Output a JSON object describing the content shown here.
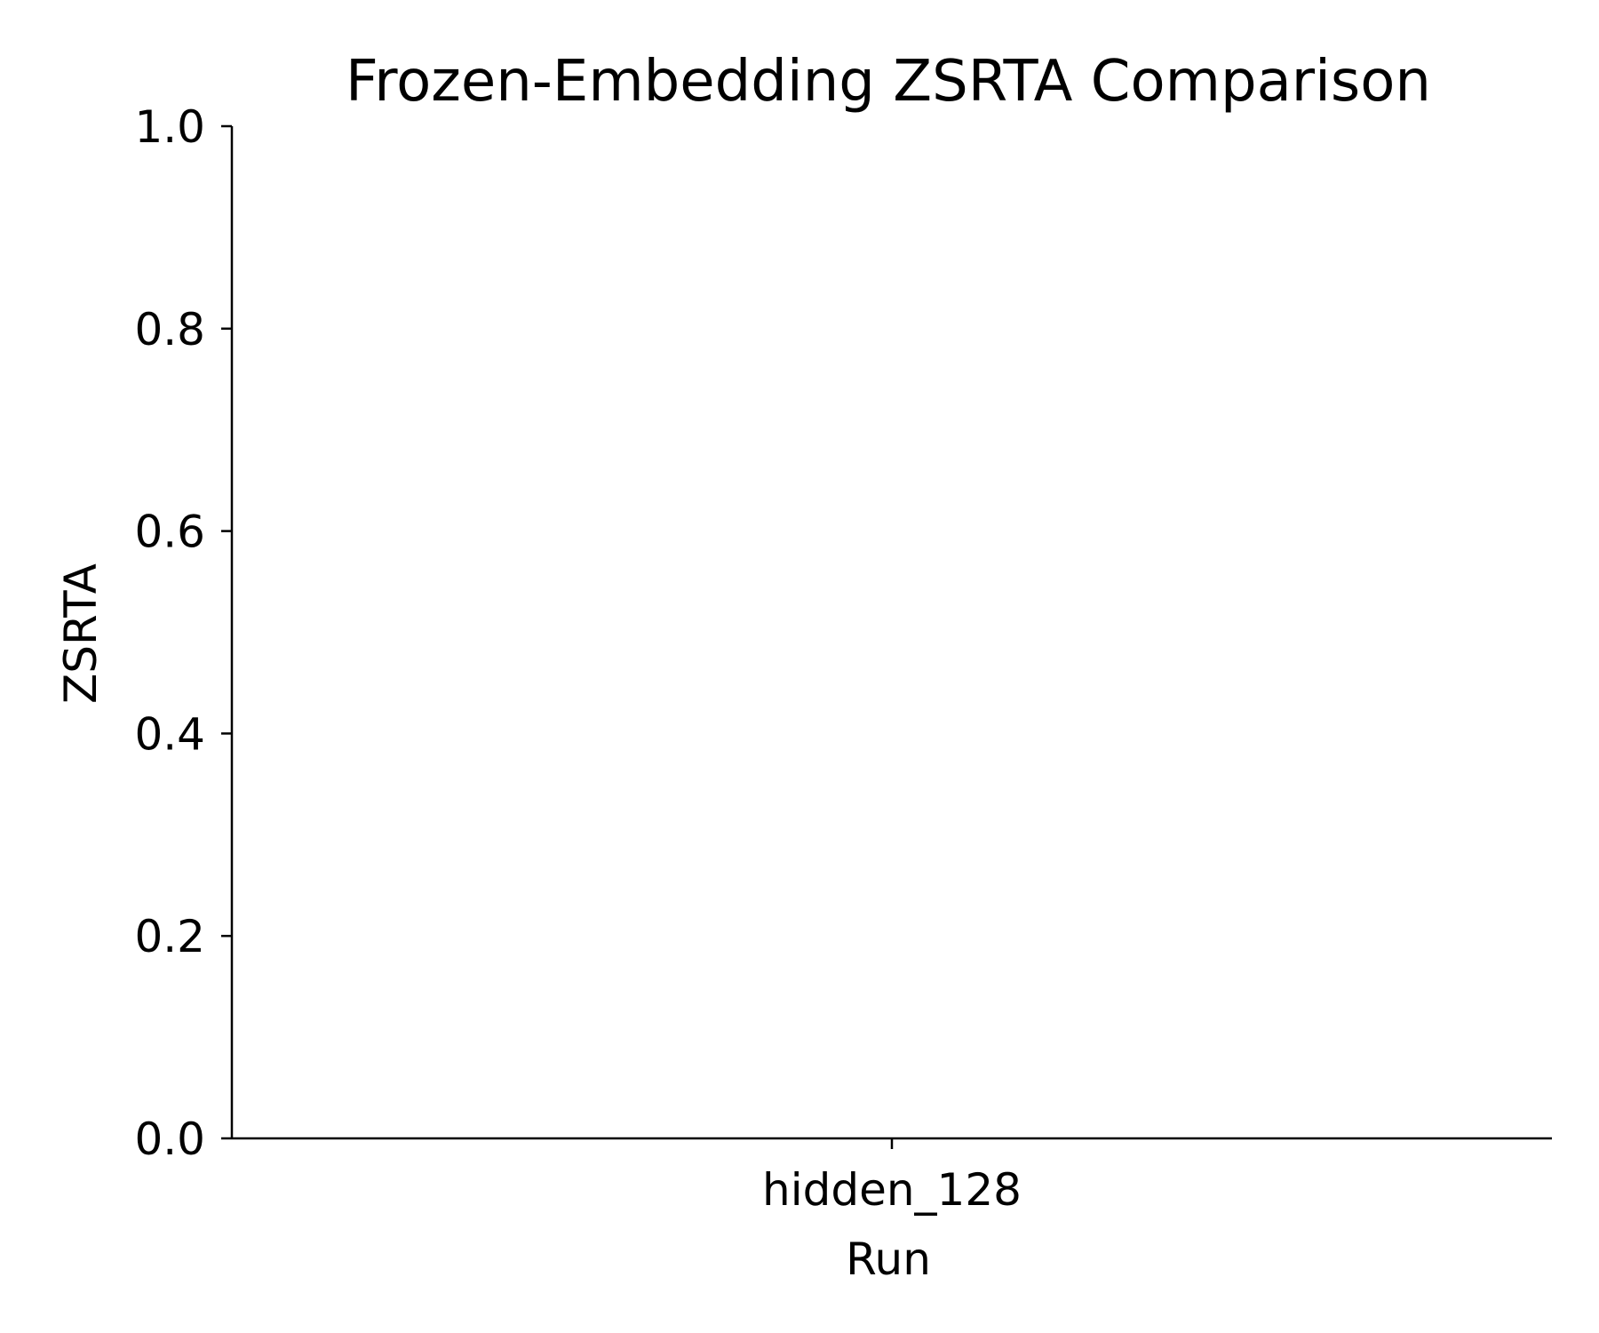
{
  "chart_data": {
    "type": "bar",
    "title": "Frozen-Embedding ZSRTA Comparison",
    "xlabel": "Run",
    "ylabel": "ZSRTA",
    "categories": [
      "hidden_128"
    ],
    "series": [
      {
        "values": [
          0.0
        ]
      }
    ],
    "ylim": [
      0.0,
      1.0
    ],
    "yticks": [
      0.0,
      0.2,
      0.4,
      0.6,
      0.8,
      1.0
    ],
    "ytick_labels": [
      "0.0",
      "0.2",
      "0.4",
      "0.6",
      "0.8",
      "1.0"
    ],
    "grid": false,
    "legend": "none",
    "colors": {
      "axis": "#000000",
      "background": "#ffffff",
      "bar": "#4c72b0"
    }
  }
}
